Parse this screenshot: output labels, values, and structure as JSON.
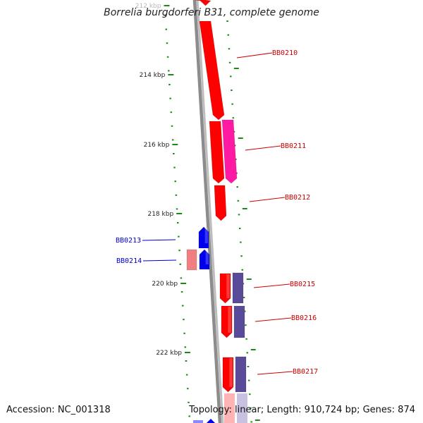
{
  "title": "Borrelia burgdorferi B31, complete genome",
  "accession": "Accession: NC_001318",
  "summary": "Topology: linear; Length: 910,724 bp; Genes: 874",
  "ruler": {
    "tick_color": "#1a8a1a",
    "labels": [
      "212 kbp",
      "214 kbp",
      "216 kbp",
      "218 kbp",
      "220 kbp",
      "222 kbp"
    ]
  },
  "colors": {
    "backbone": "#8c8c8c",
    "forward_gene": "#ff0000",
    "magenta_gene": "#ff1aa3",
    "reverse_gene": "#0000ee",
    "pink_gene": "#f08080",
    "purple_gene": "#5a4a9a",
    "label_red": "#cc0000",
    "label_blue": "#0000cc"
  },
  "gene_labels": [
    {
      "name": "BB0210",
      "strand": "forward"
    },
    {
      "name": "BB0211",
      "strand": "forward"
    },
    {
      "name": "BB0212",
      "strand": "forward"
    },
    {
      "name": "BB0213",
      "strand": "reverse"
    },
    {
      "name": "BB0214",
      "strand": "reverse"
    },
    {
      "name": "BB0215",
      "strand": "forward"
    },
    {
      "name": "BB0216",
      "strand": "forward"
    },
    {
      "name": "BB0217",
      "strand": "forward"
    }
  ]
}
